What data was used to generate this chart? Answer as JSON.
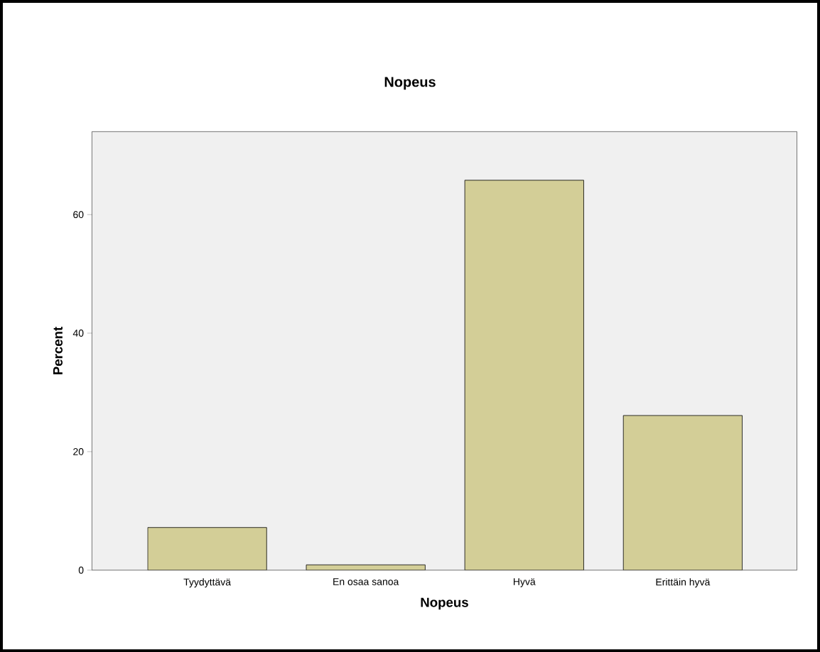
{
  "chart_data": {
    "type": "bar",
    "title": "Nopeus",
    "xlabel": "Nopeus",
    "ylabel": "Percent",
    "categories": [
      "Tyydyttävä",
      "En osaa sanoa",
      "Hyvä",
      "Erittäin hyvä"
    ],
    "values": [
      7.2,
      0.9,
      65.8,
      26.1
    ],
    "color": "#d3ce97",
    "ylim": [
      0,
      74
    ],
    "yticks": [
      0,
      20,
      40,
      60
    ],
    "grid": false
  }
}
